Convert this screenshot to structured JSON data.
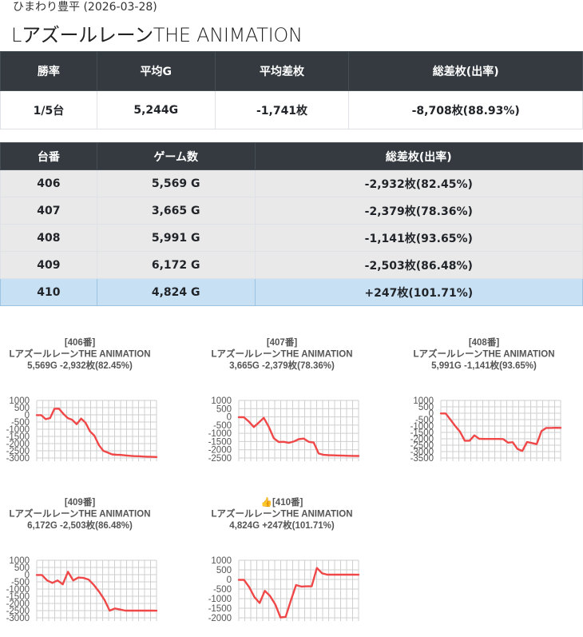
{
  "header": {
    "subtitle": "ひまわり豊平 (2026-03-28)",
    "title": "LアズールレーンTHE ANIMATION"
  },
  "summary": {
    "headers": [
      "勝率",
      "平均G",
      "平均差枚",
      "総差枚(出率)"
    ],
    "values": [
      "1/5台",
      "5,244G",
      "-1,741枚",
      "-8,708枚(88.93%)"
    ]
  },
  "machines": {
    "headers": [
      "台番",
      "ゲーム数",
      "総差枚(出率)"
    ],
    "rows": [
      {
        "number": "406",
        "games": "5,569 G",
        "diff": "-2,932枚(82.45%)"
      },
      {
        "number": "407",
        "games": "3,665 G",
        "diff": "-2,379枚(78.36%)"
      },
      {
        "number": "408",
        "games": "5,991 G",
        "diff": "-1,141枚(93.65%)"
      },
      {
        "number": "409",
        "games": "6,172 G",
        "diff": "-2,503枚(86.48%)"
      },
      {
        "number": "410",
        "games": "4,824 G",
        "diff": "+247枚(101.71%)",
        "highlight": true
      }
    ]
  },
  "colors": {
    "header_bg": "#343a40",
    "row_bg": "#e9e9e9",
    "highlight_row_bg": "#c8e0f4",
    "line": "#f04848",
    "grid": "#cfcfcf"
  },
  "chart_data": [
    {
      "type": "line",
      "title_lines": [
        "[406番]",
        "LアズールレーンTHE ANIMATION",
        "5,569G -2,932枚(82.45%)"
      ],
      "ylim": [
        -3000,
        1000
      ],
      "yticks": [
        1000,
        500,
        0,
        -500,
        -1000,
        -1500,
        -2000,
        -2500,
        -3000
      ],
      "values": [
        -20,
        -20,
        -300,
        -230,
        420,
        430,
        70,
        -230,
        -350,
        -650,
        -260,
        -550,
        -1150,
        -1450,
        -2100,
        -2500,
        -2620,
        -2750,
        -2780,
        -2790,
        -2820,
        -2850,
        -2870,
        -2880,
        -2900,
        -2910,
        -2920,
        -2932
      ]
    },
    {
      "type": "line",
      "title_lines": [
        "[407番]",
        "LアズールレーンTHE ANIMATION",
        "3,665G -2,379枚(78.36%)"
      ],
      "ylim": [
        -2500,
        1000
      ],
      "yticks": [
        1000,
        500,
        0,
        -500,
        -1000,
        -1500,
        -2000,
        -2500
      ],
      "values": [
        -20,
        -20,
        -280,
        -620,
        -350,
        -60,
        -600,
        -1300,
        -1530,
        -1520,
        -1580,
        -1500,
        -1360,
        -1320,
        -1520,
        -1560,
        -2230,
        -2310,
        -2330,
        -2340,
        -2350,
        -2360,
        -2370,
        -2375,
        -2379
      ]
    },
    {
      "type": "line",
      "title_lines": [
        "[408番]",
        "LアズールレーンTHE ANIMATION",
        "5,991G -1,141枚(93.65%)"
      ],
      "ylim": [
        -3500,
        1000
      ],
      "yticks": [
        1000,
        500,
        0,
        -500,
        -1000,
        -1500,
        -2000,
        -2500,
        -3000,
        -3500
      ],
      "values": [
        -20,
        -20,
        -500,
        -1000,
        -1450,
        -2150,
        -2150,
        -1730,
        -2000,
        -2010,
        -2010,
        -2010,
        -2010,
        -2020,
        -2300,
        -2270,
        -2800,
        -2950,
        -2250,
        -2330,
        -2420,
        -1400,
        -1150,
        -1150,
        -1140,
        -1141
      ]
    },
    {
      "type": "line",
      "title_lines": [
        "[409番]",
        "LアズールレーンTHE ANIMATION",
        "6,172G -2,503枚(86.48%)"
      ],
      "ylim": [
        -3000,
        1000
      ],
      "yticks": [
        1000,
        500,
        0,
        -500,
        -1000,
        -1500,
        -2000,
        -2500,
        -3000
      ],
      "values": [
        -20,
        -20,
        -400,
        -570,
        -400,
        -670,
        200,
        -400,
        -200,
        -230,
        -350,
        -730,
        -1200,
        -1750,
        -2500,
        -2350,
        -2420,
        -2500,
        -2500,
        -2500,
        -2500,
        -2500,
        -2500,
        -2503
      ]
    },
    {
      "type": "line",
      "title_lines": [
        "👍[410番]",
        "LアズールレーンTHE ANIMATION",
        "4,824G +247枚(101.71%)"
      ],
      "ylim": [
        -2000,
        1000
      ],
      "yticks": [
        1000,
        500,
        0,
        -500,
        -1000,
        -1500,
        -2000
      ],
      "values": [
        -20,
        -20,
        -400,
        -920,
        -1230,
        -590,
        -860,
        -1300,
        -1980,
        -1950,
        -1100,
        -290,
        -370,
        -360,
        -360,
        600,
        320,
        250,
        250,
        250,
        250,
        250,
        248,
        247
      ]
    }
  ]
}
